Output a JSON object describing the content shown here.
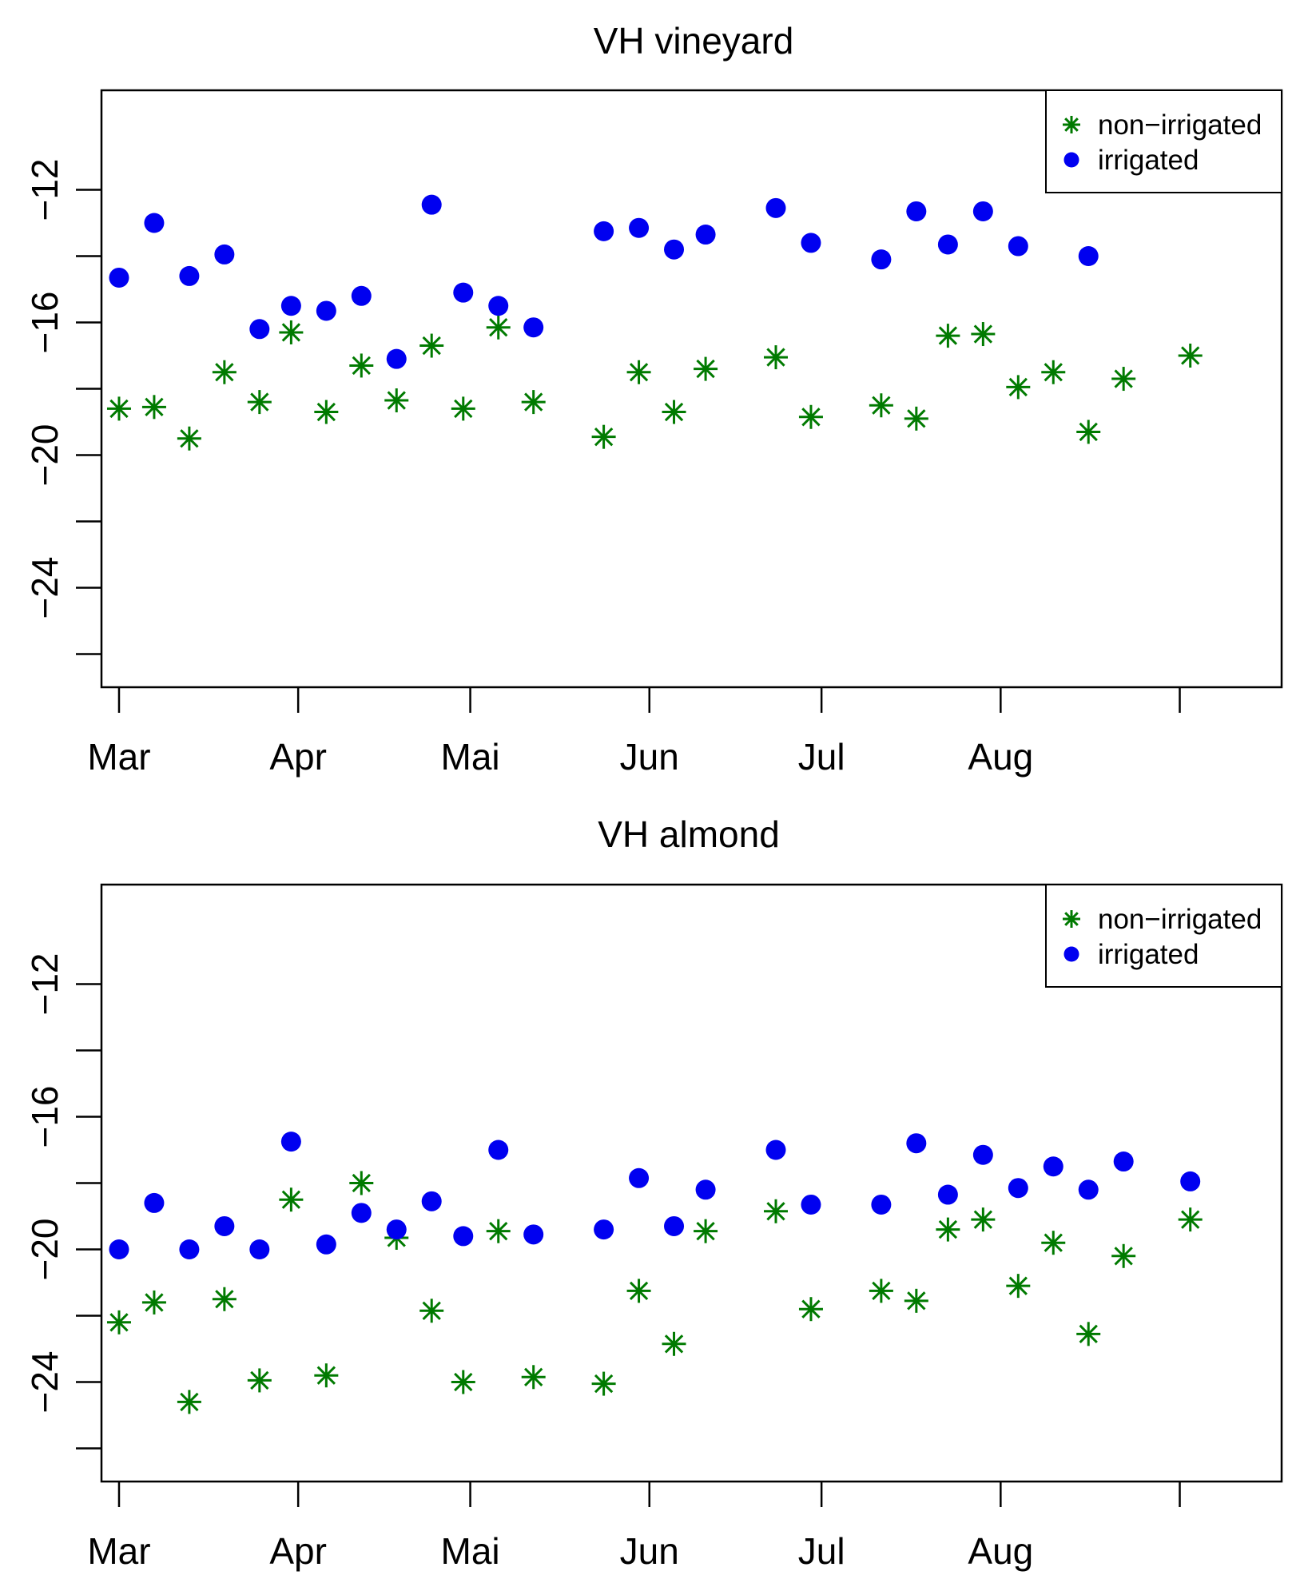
{
  "colors": {
    "non_irrigated": "#007a00",
    "irrigated": "#0000f0"
  },
  "chart_data": [
    {
      "type": "scatter",
      "title": "VH vineyard",
      "xlabel": "",
      "ylabel": "",
      "ylim": [
        -27,
        -9
      ],
      "yticks": [
        -12,
        -16,
        -20,
        -24
      ],
      "ytick_labels": [
        "−12",
        "−16",
        "−20",
        "−24"
      ],
      "xlim": [
        -5,
        331
      ],
      "xticks": [
        0,
        51,
        100,
        151,
        200,
        251,
        302
      ],
      "xtick_labels": [
        "Mar",
        "Apr",
        "Mai",
        "Jun",
        "Jul",
        "Aug",
        ""
      ],
      "legend": {
        "position": "top-right",
        "entries": [
          "non−irrigated",
          "irrigated"
        ]
      },
      "series": [
        {
          "name": "non−irrigated",
          "marker": "asterisk",
          "x": [
            0,
            10,
            20,
            30,
            40,
            49,
            59,
            69,
            79,
            89,
            98,
            108,
            118,
            138,
            148,
            158,
            167,
            187,
            197,
            217,
            227,
            236,
            246,
            256,
            266,
            276,
            286,
            305
          ],
          "y": [
            -18.6,
            -18.55,
            -19.5,
            -17.5,
            -18.4,
            -16.3,
            -18.7,
            -17.3,
            -18.35,
            -16.7,
            -18.6,
            -16.15,
            -18.4,
            -19.45,
            -17.5,
            -18.7,
            -17.4,
            -17.05,
            -18.85,
            -18.5,
            -18.9,
            -16.4,
            -16.35,
            -17.95,
            -17.5,
            -19.3,
            -17.7,
            -17.0
          ]
        },
        {
          "name": "irrigated",
          "marker": "dot",
          "x": [
            0,
            10,
            20,
            30,
            40,
            49,
            59,
            69,
            79,
            89,
            98,
            108,
            118,
            138,
            148,
            158,
            167,
            187,
            197,
            217,
            227,
            236,
            246,
            256,
            276
          ],
          "y": [
            -14.65,
            -13.0,
            -14.6,
            -13.95,
            -16.2,
            -15.5,
            -15.65,
            -15.2,
            -17.1,
            -12.45,
            -15.1,
            -15.5,
            -16.15,
            -13.25,
            -13.15,
            -13.8,
            -13.35,
            -12.55,
            -13.6,
            -14.1,
            -12.65,
            -13.65,
            -12.65,
            -13.7,
            -14.0
          ]
        }
      ]
    },
    {
      "type": "scatter",
      "title": "VH almond",
      "xlabel": "",
      "ylabel": "",
      "ylim": [
        -27,
        -9
      ],
      "yticks": [
        -12,
        -16,
        -20,
        -24
      ],
      "ytick_labels": [
        "−12",
        "−16",
        "−20",
        "−24"
      ],
      "xlim": [
        -5,
        331
      ],
      "xticks": [
        0,
        51,
        100,
        151,
        200,
        251,
        302
      ],
      "xtick_labels": [
        "Mar",
        "Apr",
        "Mai",
        "Jun",
        "Jul",
        "Aug",
        ""
      ],
      "legend": {
        "position": "top-right",
        "entries": [
          "non−irrigated",
          "irrigated"
        ]
      },
      "series": [
        {
          "name": "non−irrigated",
          "marker": "asterisk",
          "x": [
            0,
            10,
            20,
            30,
            40,
            49,
            59,
            69,
            79,
            89,
            98,
            108,
            118,
            138,
            148,
            158,
            167,
            187,
            197,
            217,
            227,
            236,
            246,
            256,
            266,
            276,
            286,
            305
          ],
          "y": [
            -22.2,
            -21.6,
            -24.6,
            -21.5,
            -23.95,
            -18.5,
            -23.8,
            -18.0,
            -19.65,
            -21.85,
            -24.0,
            -19.45,
            -23.85,
            -24.05,
            -21.25,
            -22.85,
            -19.45,
            -18.85,
            -21.8,
            -21.25,
            -21.55,
            -19.4,
            -19.1,
            -21.1,
            -19.8,
            -22.55,
            -20.2,
            -19.1
          ]
        },
        {
          "name": "irrigated",
          "marker": "dot",
          "x": [
            0,
            10,
            20,
            30,
            40,
            49,
            59,
            69,
            79,
            89,
            98,
            108,
            118,
            138,
            148,
            158,
            167,
            187,
            197,
            217,
            227,
            236,
            246,
            256,
            266,
            276,
            286,
            305
          ],
          "y": [
            -20.0,
            -18.6,
            -20.0,
            -19.3,
            -20.0,
            -16.75,
            -19.85,
            -18.9,
            -19.4,
            -18.55,
            -19.6,
            -17.0,
            -19.55,
            -19.4,
            -17.85,
            -19.3,
            -18.2,
            -17.0,
            -18.65,
            -18.65,
            -16.8,
            -18.35,
            -17.15,
            -18.15,
            -17.5,
            -18.2,
            -17.35,
            -17.95
          ]
        }
      ]
    }
  ]
}
